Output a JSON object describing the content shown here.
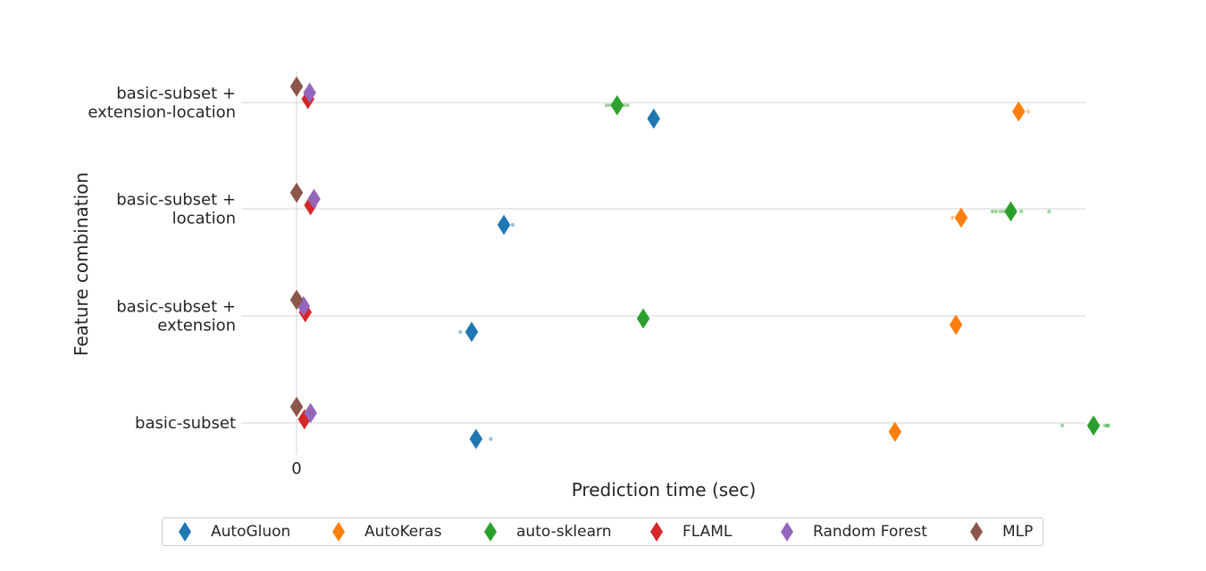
{
  "chart_data": {
    "type": "scatter",
    "xlabel": "Prediction time (sec)",
    "ylabel": "Feature combination",
    "x_ticks": [
      "0"
    ],
    "categories": [
      "basic-subset +\nextension-location",
      "basic-subset +\nlocation",
      "basic-subset +\nextension",
      "basic-subset"
    ],
    "grid": "horizontal",
    "legend_position": "bottom",
    "colors": {
      "AutoGluon": "#1f77b4",
      "AutoKeras": "#ff7f0e",
      "auto-sklearn": "#2ca02c",
      "FLAML": "#d62728",
      "Random Forest": "#9467bd",
      "MLP": "#8c564b"
    },
    "series": [
      {
        "name": "AutoGluon",
        "means": [
          0.41,
          0.238,
          0.201,
          0.206
        ],
        "points": [
          [],
          [
            0.248
          ],
          [
            0.188
          ],
          [
            0.223
          ]
        ]
      },
      {
        "name": "AutoKeras",
        "means": [
          0.829,
          0.763,
          0.757,
          0.687
        ],
        "points": [
          [
            0.84
          ],
          [
            0.753
          ],
          [],
          []
        ]
      },
      {
        "name": "auto-sklearn",
        "means": [
          0.368,
          0.82,
          0.398,
          0.915
        ],
        "points": [
          [
            0.356,
            0.36,
            0.364,
            0.376,
            0.38
          ],
          [
            0.799,
            0.803,
            0.808,
            0.812,
            0.832,
            0.864
          ],
          [],
          [
            0.879,
            0.928,
            0.931,
            0.932
          ]
        ]
      },
      {
        "name": "FLAML",
        "means": [
          0.013,
          0.016,
          0.01,
          0.009
        ],
        "points": [
          [],
          [],
          [],
          []
        ]
      },
      {
        "name": "Random Forest",
        "means": [
          0.015,
          0.02,
          0.008,
          0.016
        ],
        "points": [
          [],
          [],
          [],
          []
        ]
      },
      {
        "name": "MLP",
        "means": [
          0.0,
          0.0,
          0.0,
          0.0
        ],
        "points": [
          [],
          [],
          [],
          []
        ]
      }
    ]
  }
}
